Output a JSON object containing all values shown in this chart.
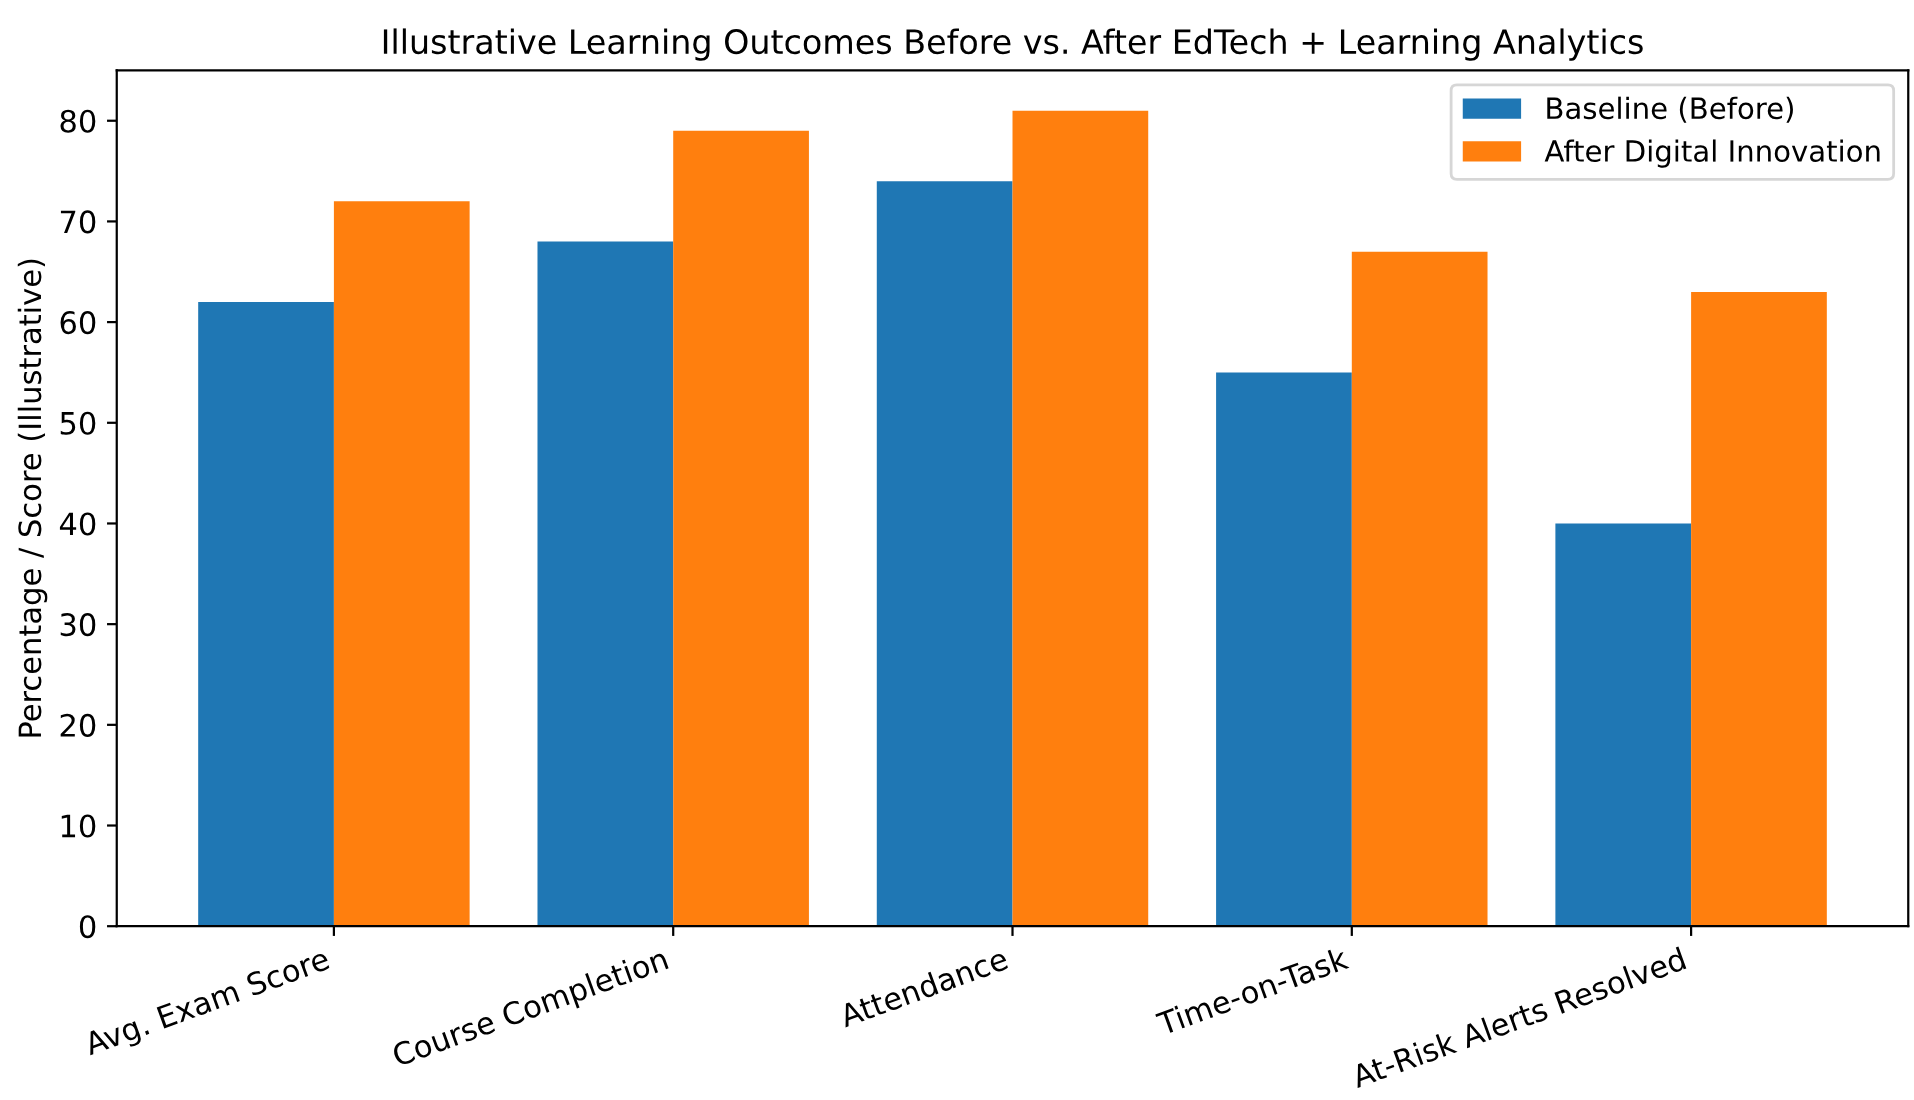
{
  "chart_data": {
    "type": "bar",
    "title": "Illustrative Learning Outcomes Before vs. After EdTech + Learning Analytics",
    "ylabel": "Percentage / Score (Illustrative)",
    "categories": [
      "Avg. Exam Score",
      "Course Completion",
      "Attendance",
      "Time-on-Task",
      "At-Risk Alerts Resolved"
    ],
    "series": [
      {
        "name": "Baseline (Before)",
        "color": "#1f77b4",
        "values": [
          62,
          68,
          74,
          55,
          40
        ]
      },
      {
        "name": "After Digital Innovation",
        "color": "#ff7f0e",
        "values": [
          72,
          79,
          81,
          67,
          63
        ]
      }
    ],
    "ylim": [
      0,
      85
    ],
    "yticks": [
      0,
      10,
      20,
      30,
      40,
      50,
      60,
      70,
      80
    ],
    "legend": "top right",
    "grid": false
  }
}
